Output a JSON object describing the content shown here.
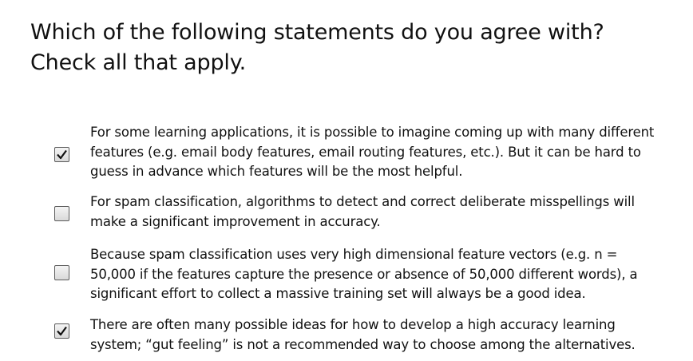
{
  "question": {
    "line1": "Which of the following statements do you agree with?",
    "line2": "Check all that apply."
  },
  "options": [
    {
      "checked": true,
      "lines": [
        "For some learning applications, it is possible to imagine coming up with many different",
        "features (e.g. email body features, email routing features, etc.). But it can be hard to",
        "guess in advance which features will be the most helpful."
      ]
    },
    {
      "checked": false,
      "lines": [
        "For spam classification, algorithms to detect and correct deliberate misspellings will",
        "make a significant improvement in accuracy."
      ]
    },
    {
      "checked": false,
      "lines": [
        "Because spam classification uses very high dimensional feature vectors (e.g. n =",
        "50,000 if the features capture the presence or absence of 50,000 different words), a",
        "significant effort to collect a massive training set will always be a good idea."
      ]
    },
    {
      "checked": true,
      "lines": [
        "There are often many possible ideas for how to develop a high accuracy learning",
        "system; “gut feeling” is not a recommended way to choose among the alternatives."
      ]
    }
  ],
  "icons": {
    "checked": "checkmark-icon",
    "unchecked": "empty-checkbox"
  },
  "colors": {
    "text": "#111111",
    "checkbox_border": "#5a5a5a",
    "checkmark": "#111111"
  }
}
